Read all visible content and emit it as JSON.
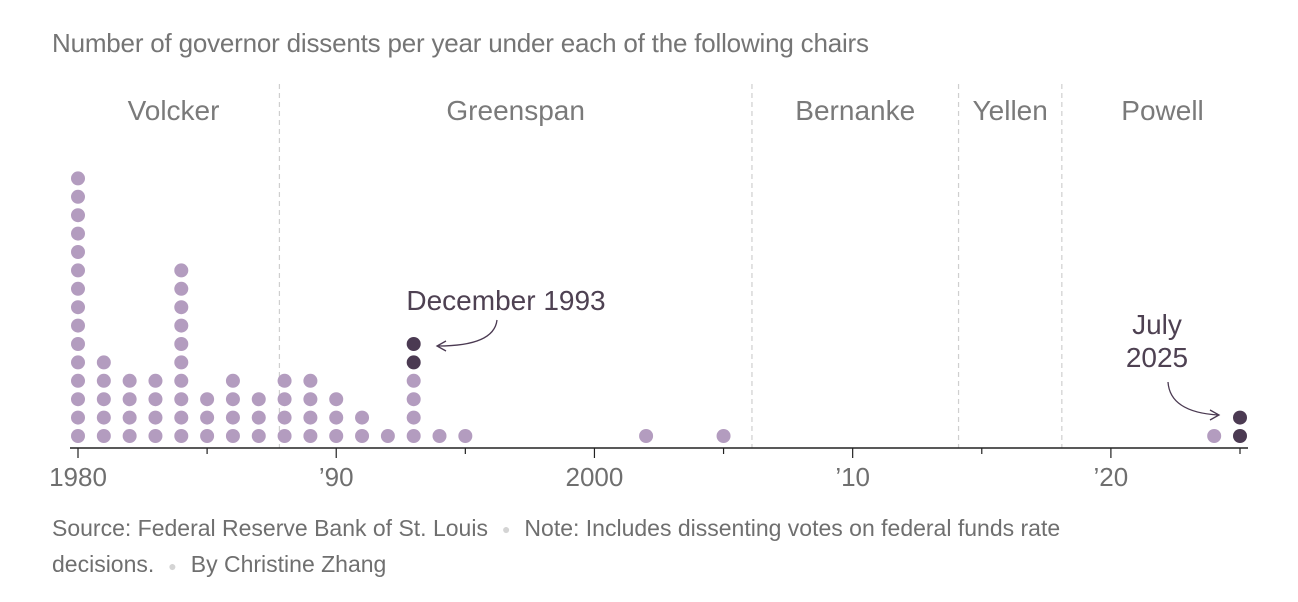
{
  "chart_data": {
    "type": "dot",
    "title": "Number of governor dissents per year under each of the following chairs",
    "x_range": [
      1980,
      2025
    ],
    "x_ticks": [
      {
        "year": 1980,
        "label": "1980"
      },
      {
        "year": 1990,
        "label": "’90"
      },
      {
        "year": 2000,
        "label": "2000"
      },
      {
        "year": 2010,
        "label": "’10"
      },
      {
        "year": 2020,
        "label": "’20"
      }
    ],
    "chairs": [
      {
        "name": "Volcker",
        "start": 1979.6,
        "end": 1987.8
      },
      {
        "name": "Greenspan",
        "start": 1987.8,
        "end": 2006.1
      },
      {
        "name": "Bernanke",
        "start": 2006.1,
        "end": 2014.1
      },
      {
        "name": "Yellen",
        "start": 2014.1,
        "end": 2018.1
      },
      {
        "name": "Powell",
        "start": 2018.1,
        "end": 2025.9
      }
    ],
    "series": [
      {
        "year": 1980,
        "count": 15,
        "highlighted": 0
      },
      {
        "year": 1981,
        "count": 5,
        "highlighted": 0
      },
      {
        "year": 1982,
        "count": 4,
        "highlighted": 0
      },
      {
        "year": 1983,
        "count": 4,
        "highlighted": 0
      },
      {
        "year": 1984,
        "count": 10,
        "highlighted": 0
      },
      {
        "year": 1985,
        "count": 3,
        "highlighted": 0
      },
      {
        "year": 1986,
        "count": 4,
        "highlighted": 0
      },
      {
        "year": 1987,
        "count": 3,
        "highlighted": 0
      },
      {
        "year": 1988,
        "count": 4,
        "highlighted": 0
      },
      {
        "year": 1989,
        "count": 4,
        "highlighted": 0
      },
      {
        "year": 1990,
        "count": 3,
        "highlighted": 0
      },
      {
        "year": 1991,
        "count": 2,
        "highlighted": 0
      },
      {
        "year": 1992,
        "count": 1,
        "highlighted": 0
      },
      {
        "year": 1993,
        "count": 6,
        "highlighted": 2
      },
      {
        "year": 1994,
        "count": 1,
        "highlighted": 0
      },
      {
        "year": 1995,
        "count": 1,
        "highlighted": 0
      },
      {
        "year": 2002,
        "count": 1,
        "highlighted": 0
      },
      {
        "year": 2005,
        "count": 1,
        "highlighted": 0
      },
      {
        "year": 2024,
        "count": 1,
        "highlighted": 0
      },
      {
        "year": 2025,
        "count": 2,
        "highlighted": 2
      }
    ],
    "annotations": [
      {
        "text": "December 1993",
        "year": 1993
      },
      {
        "text_lines": [
          "July",
          "2025"
        ],
        "year": 2025
      }
    ],
    "colors": {
      "dot": "#b39cbf",
      "highlight": "#4b3a52",
      "axis": "#222222",
      "divider": "#cfcfcf"
    }
  },
  "footer": {
    "source": "Source: Federal Reserve Bank of St. Louis",
    "note": "Note: Includes dissenting votes on federal funds rate decisions.",
    "byline": "By Christine Zhang"
  }
}
